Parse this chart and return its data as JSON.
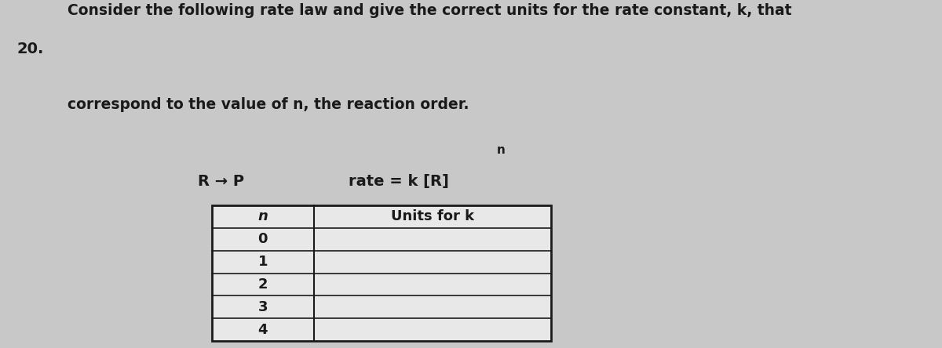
{
  "question_number": "20.",
  "title_line1": "Consider the following rate law and give the correct units for the rate constant, k, that",
  "title_line2": "correspond to the value of n, the reaction order.",
  "reaction": "R → P",
  "rate_law": "rate = k [R]",
  "rate_law_superscript": "n",
  "table_col1_header": "n",
  "table_col2_header": "Units for k",
  "table_rows": [
    "0",
    "1",
    "2",
    "3",
    "4"
  ],
  "bg_color": "#c8c8c8",
  "text_color": "#1a1a1a",
  "table_bg": "#e8e8e8",
  "font_size_title": 13.5,
  "font_size_table": 13,
  "font_size_qnum": 14,
  "font_size_equation": 14
}
